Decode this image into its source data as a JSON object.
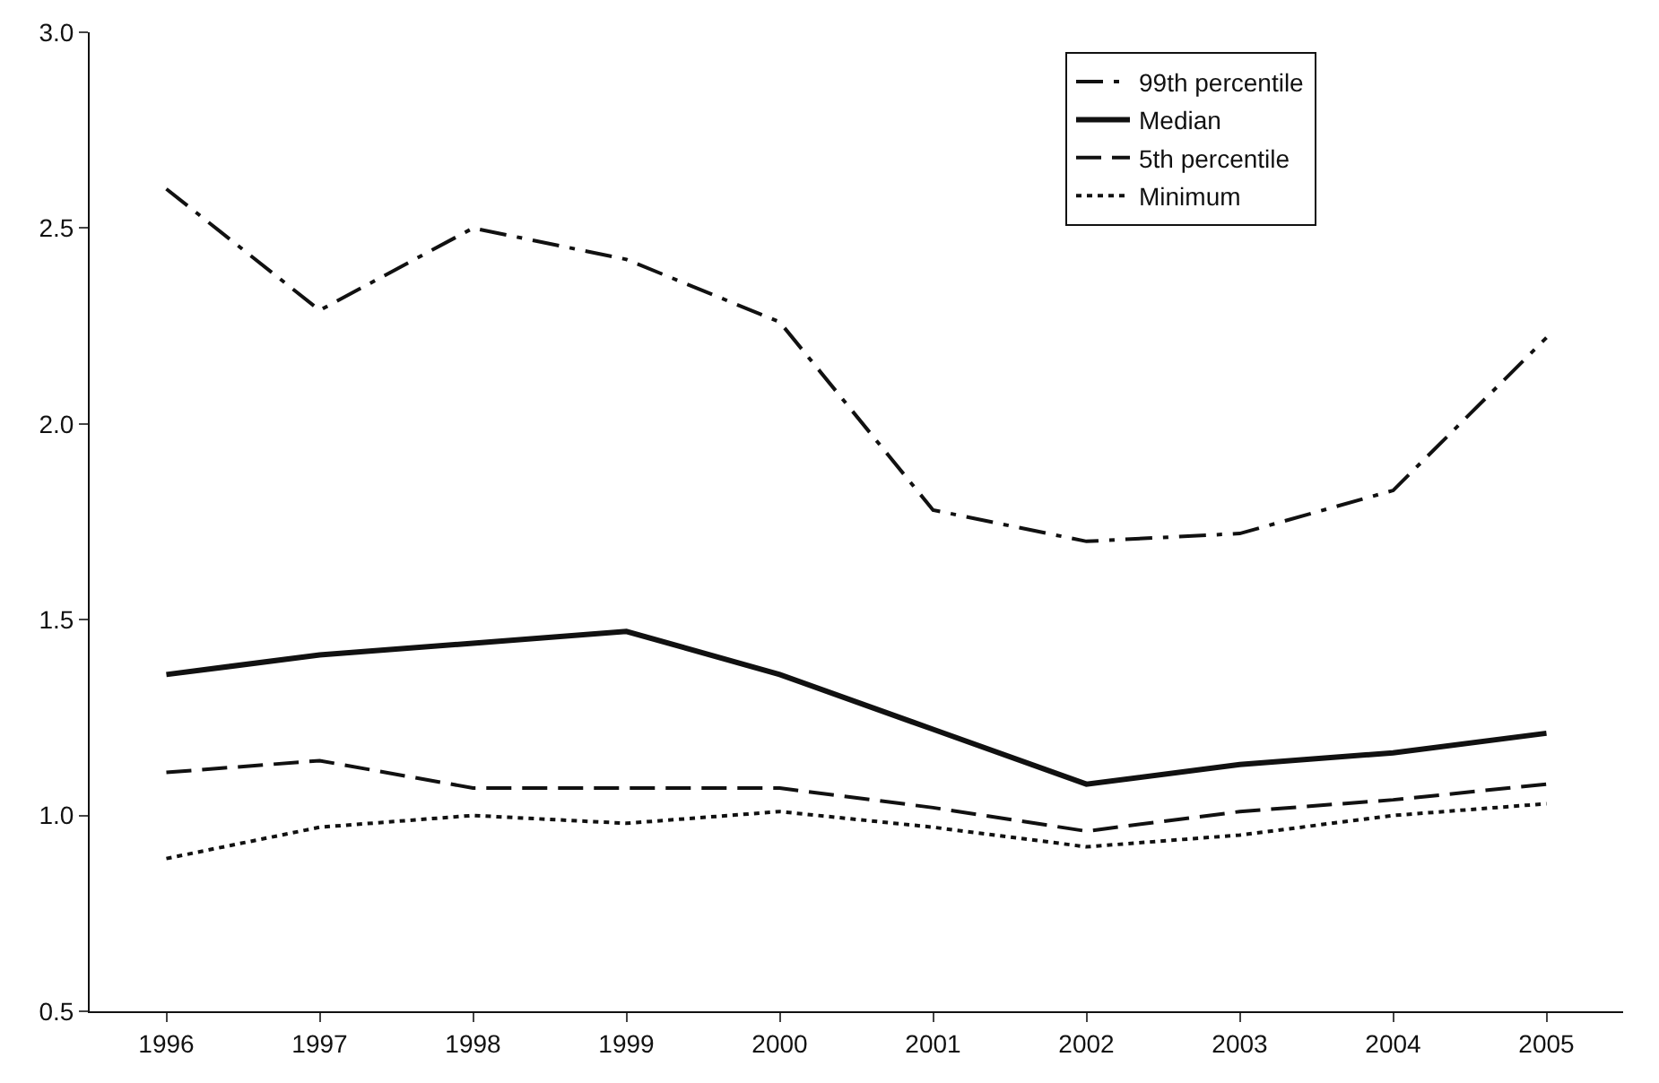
{
  "chart_data": {
    "type": "line",
    "categories": [
      "1996",
      "1997",
      "1998",
      "1999",
      "2000",
      "2001",
      "2002",
      "2003",
      "2004",
      "2005"
    ],
    "series": [
      {
        "name": "99th percentile",
        "color": "#111111",
        "line_style": "dashdot",
        "values": [
          2.6,
          2.29,
          2.5,
          2.42,
          2.26,
          1.78,
          1.7,
          1.72,
          1.83,
          2.22
        ]
      },
      {
        "name": "Median",
        "color": "#111111",
        "line_style": "solid",
        "values": [
          1.36,
          1.41,
          1.44,
          1.47,
          1.36,
          1.22,
          1.08,
          1.13,
          1.16,
          1.21
        ]
      },
      {
        "name": "5th percentile",
        "color": "#111111",
        "line_style": "dashed",
        "values": [
          1.11,
          1.14,
          1.07,
          1.07,
          1.07,
          1.02,
          0.96,
          1.01,
          1.04,
          1.08
        ]
      },
      {
        "name": "Minimum",
        "color": "#111111",
        "line_style": "dotted",
        "values": [
          0.89,
          0.97,
          1.0,
          0.98,
          1.01,
          0.97,
          0.92,
          0.95,
          1.0,
          1.03
        ]
      }
    ],
    "ylim": [
      0.5,
      3.0
    ],
    "yticks": [
      {
        "value": 0.5,
        "label": "0.5"
      },
      {
        "value": 1.0,
        "label": "1.0"
      },
      {
        "value": 1.5,
        "label": "1.5"
      },
      {
        "value": 2.0,
        "label": "2.0"
      },
      {
        "value": 2.5,
        "label": "2.5"
      },
      {
        "value": 3.0,
        "label": "3.0"
      }
    ],
    "legend": "top right",
    "marker": "none"
  }
}
